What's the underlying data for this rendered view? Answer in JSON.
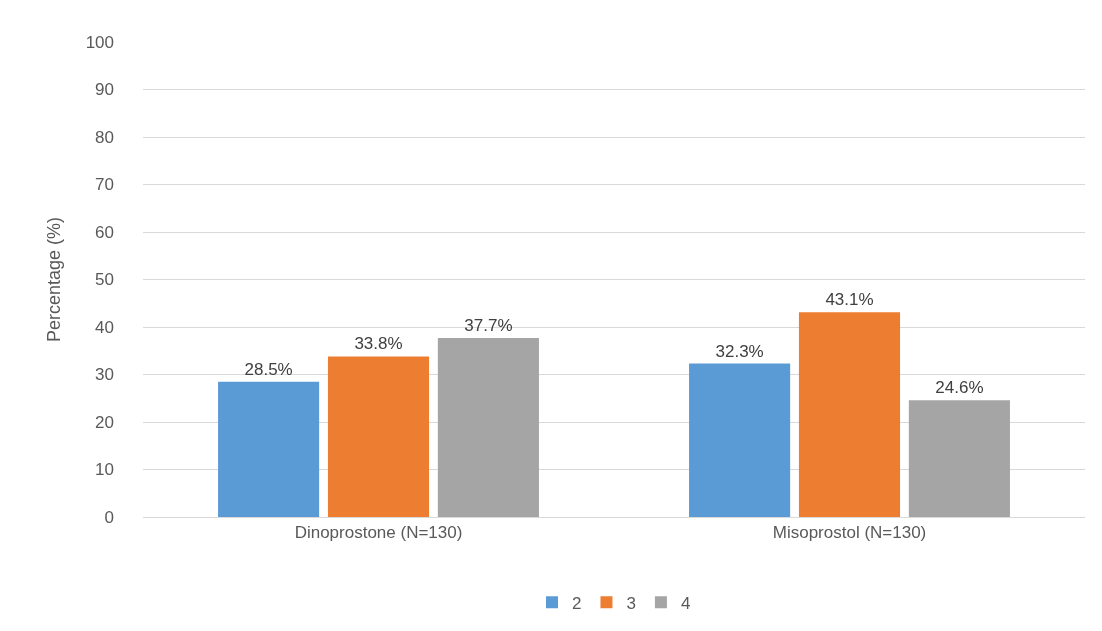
{
  "chart_data": {
    "type": "bar",
    "ylabel": "Percentage (%)",
    "categories": [
      "Dinoprostone (N=130)",
      "Misoprostol (N=130)"
    ],
    "series": [
      {
        "name": "2",
        "color": "#5b9bd5",
        "values": [
          28.5,
          32.3
        ],
        "value_labels": [
          "28.5%",
          "32.3%"
        ]
      },
      {
        "name": "3",
        "color": "#ed7d31",
        "values": [
          33.8,
          43.1
        ],
        "value_labels": [
          "33.8%",
          "43.1%"
        ]
      },
      {
        "name": "4",
        "color": "#a5a5a5",
        "values": [
          37.7,
          24.6
        ],
        "value_labels": [
          "37.7%",
          "24.6%"
        ]
      }
    ],
    "ylim": [
      0,
      100
    ],
    "yticks": [
      0,
      10,
      20,
      30,
      40,
      50,
      60,
      70,
      80,
      90,
      100
    ],
    "grid": "y",
    "legend": "bottom"
  }
}
